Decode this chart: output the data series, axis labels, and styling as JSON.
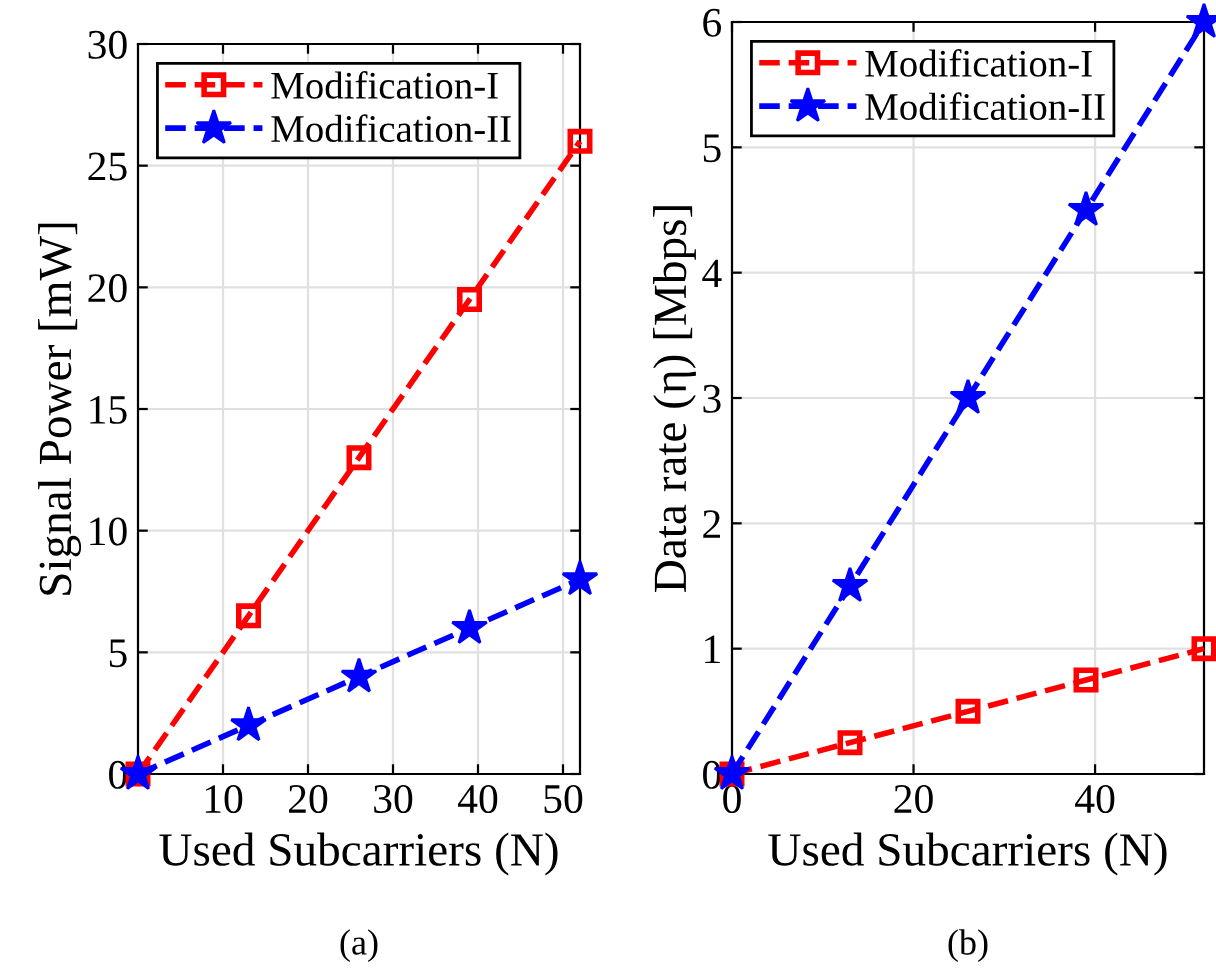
{
  "chart_data": [
    {
      "type": "line",
      "xlabel": "Used Subcarriers (N)",
      "ylabel": "Signal Power [mW]",
      "xlim": [
        0,
        52
      ],
      "xticks": [
        10,
        20,
        30,
        40,
        50
      ],
      "ylim": [
        0,
        30
      ],
      "yticks": [
        0,
        5,
        10,
        15,
        20,
        25,
        30
      ],
      "grid": true,
      "legend": "top left",
      "line_style": "dashed",
      "annotations": [
        "(a)"
      ],
      "x": [
        0,
        13,
        26,
        39,
        52
      ],
      "series": [
        {
          "name": "Modification-I",
          "color": "#ff0000",
          "marker": "square",
          "values": [
            0,
            6.5,
            13,
            19.5,
            26
          ]
        },
        {
          "name": "Modification-II",
          "color": "#0000ff",
          "marker": "star",
          "values": [
            0,
            2,
            4,
            6,
            8
          ]
        }
      ]
    },
    {
      "type": "line",
      "xlabel": "Used Subcarriers (N)",
      "ylabel": "Data rate (η) [Mbps]",
      "xlim": [
        0,
        52
      ],
      "xticks": [
        0,
        20,
        40
      ],
      "ylim": [
        0,
        6
      ],
      "yticks": [
        0,
        1,
        2,
        3,
        4,
        5,
        6
      ],
      "grid": true,
      "legend": "top left",
      "line_style": "dashed",
      "annotations": [
        "(b)"
      ],
      "x": [
        0,
        13,
        26,
        39,
        52
      ],
      "series": [
        {
          "name": "Modification-I",
          "color": "#ff0000",
          "marker": "square",
          "values": [
            0,
            0.25,
            0.5,
            0.75,
            1
          ]
        },
        {
          "name": "Modification-II",
          "color": "#0000ff",
          "marker": "star",
          "values": [
            0,
            1.5,
            3,
            4.5,
            6
          ]
        }
      ]
    }
  ]
}
